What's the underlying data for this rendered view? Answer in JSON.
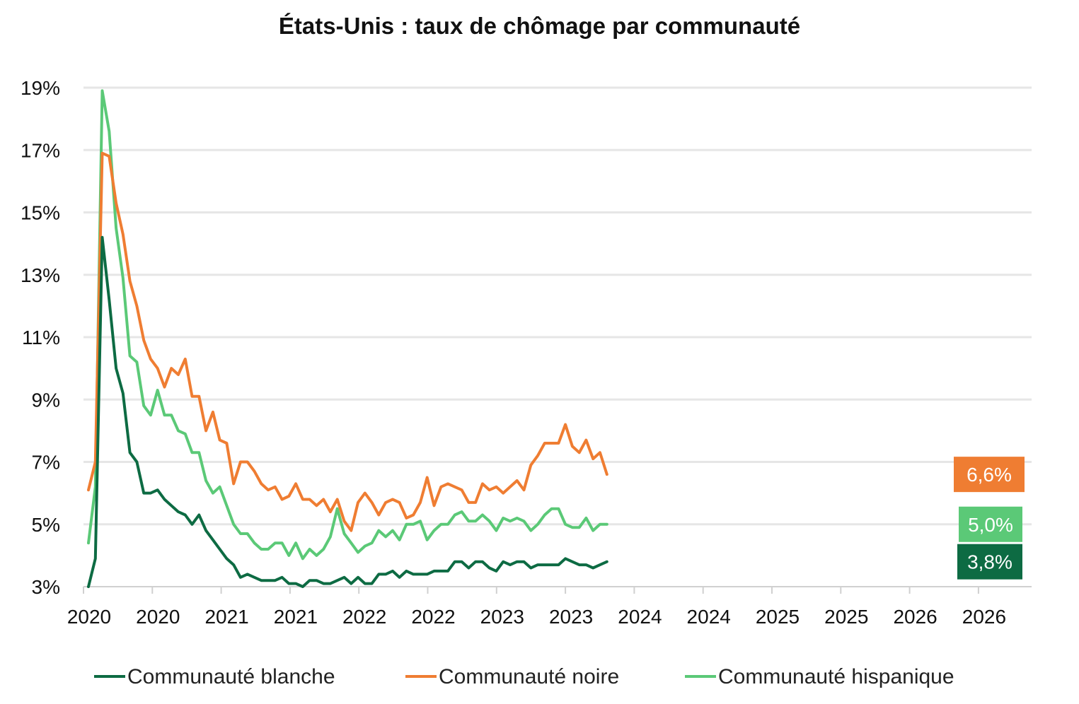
{
  "chart_data": {
    "type": "line",
    "title": "États-Unis : taux de chômage par communauté",
    "xlabel": "",
    "ylabel": "",
    "ylim": [
      3,
      19
    ],
    "y_ticks": [
      "3%",
      "5%",
      "7%",
      "9%",
      "11%",
      "13%",
      "15%",
      "17%",
      "19%"
    ],
    "x_tick_labels": [
      "2020",
      "2020",
      "2021",
      "2021",
      "2022",
      "2022",
      "2023",
      "2023",
      "2024",
      "2024",
      "2025",
      "2025",
      "2026",
      "2026"
    ],
    "grid": true,
    "legend_position": "bottom",
    "series": [
      {
        "name": "Communauté blanche",
        "color": "#0d6b43",
        "values": [
          3.0,
          3.9,
          14.2,
          12.2,
          10.0,
          9.2,
          7.3,
          7.0,
          6.0,
          6.0,
          6.1,
          5.8,
          5.6,
          5.4,
          5.3,
          5.0,
          5.3,
          4.8,
          4.5,
          4.2,
          3.9,
          3.7,
          3.3,
          3.4,
          3.3,
          3.2,
          3.2,
          3.2,
          3.3,
          3.1,
          3.1,
          3.0,
          3.2,
          3.2,
          3.1,
          3.1,
          3.2,
          3.3,
          3.1,
          3.3,
          3.1,
          3.1,
          3.4,
          3.4,
          3.5,
          3.3,
          3.5,
          3.4,
          3.4,
          3.4,
          3.5,
          3.5,
          3.5,
          3.8,
          3.8,
          3.6,
          3.8,
          3.8,
          3.6,
          3.5,
          3.8,
          3.7,
          3.8,
          3.8,
          3.6,
          3.7,
          3.7,
          3.7,
          3.7,
          3.9,
          3.8,
          3.7,
          3.7,
          3.6,
          3.7,
          3.8
        ],
        "label": "3,8%"
      },
      {
        "name": "Communauté noire",
        "color": "#ef7d32",
        "values": [
          6.1,
          7.0,
          16.9,
          16.8,
          15.3,
          14.3,
          12.8,
          12.0,
          10.9,
          10.3,
          10.0,
          9.4,
          10.0,
          9.8,
          10.3,
          9.1,
          9.1,
          8.0,
          8.6,
          7.7,
          7.6,
          6.3,
          7.0,
          7.0,
          6.7,
          6.3,
          6.1,
          6.2,
          5.8,
          5.9,
          6.3,
          5.8,
          5.8,
          5.6,
          5.8,
          5.4,
          5.8,
          5.1,
          4.8,
          5.7,
          6.0,
          5.7,
          5.3,
          5.7,
          5.8,
          5.7,
          5.2,
          5.3,
          5.7,
          6.5,
          5.6,
          6.2,
          6.3,
          6.2,
          6.1,
          5.7,
          5.7,
          6.3,
          6.1,
          6.2,
          6.0,
          6.2,
          6.4,
          6.1,
          6.9,
          7.2,
          7.6,
          7.6,
          7.6,
          8.2,
          7.5,
          7.3,
          7.7,
          7.1,
          7.3,
          6.6
        ],
        "label": "6,6%"
      },
      {
        "name": "Communauté hispanique",
        "color": "#5bc977",
        "values": [
          4.4,
          6.2,
          18.9,
          17.6,
          14.5,
          12.9,
          10.4,
          10.2,
          8.8,
          8.5,
          9.3,
          8.5,
          8.5,
          8.0,
          7.9,
          7.3,
          7.3,
          6.4,
          6.0,
          6.2,
          5.6,
          5.0,
          4.7,
          4.7,
          4.4,
          4.2,
          4.2,
          4.4,
          4.4,
          4.0,
          4.4,
          3.9,
          4.2,
          4.0,
          4.2,
          4.6,
          5.5,
          4.7,
          4.4,
          4.1,
          4.3,
          4.4,
          4.8,
          4.6,
          4.8,
          4.5,
          5.0,
          5.0,
          5.1,
          4.5,
          4.8,
          5.0,
          5.0,
          5.3,
          5.4,
          5.1,
          5.1,
          5.3,
          5.1,
          4.8,
          5.2,
          5.1,
          5.2,
          5.1,
          4.8,
          5.0,
          5.3,
          5.5,
          5.5,
          5.0,
          4.9,
          4.9,
          5.2,
          4.8,
          5.0,
          5.0
        ],
        "label": "5,0%"
      }
    ]
  }
}
